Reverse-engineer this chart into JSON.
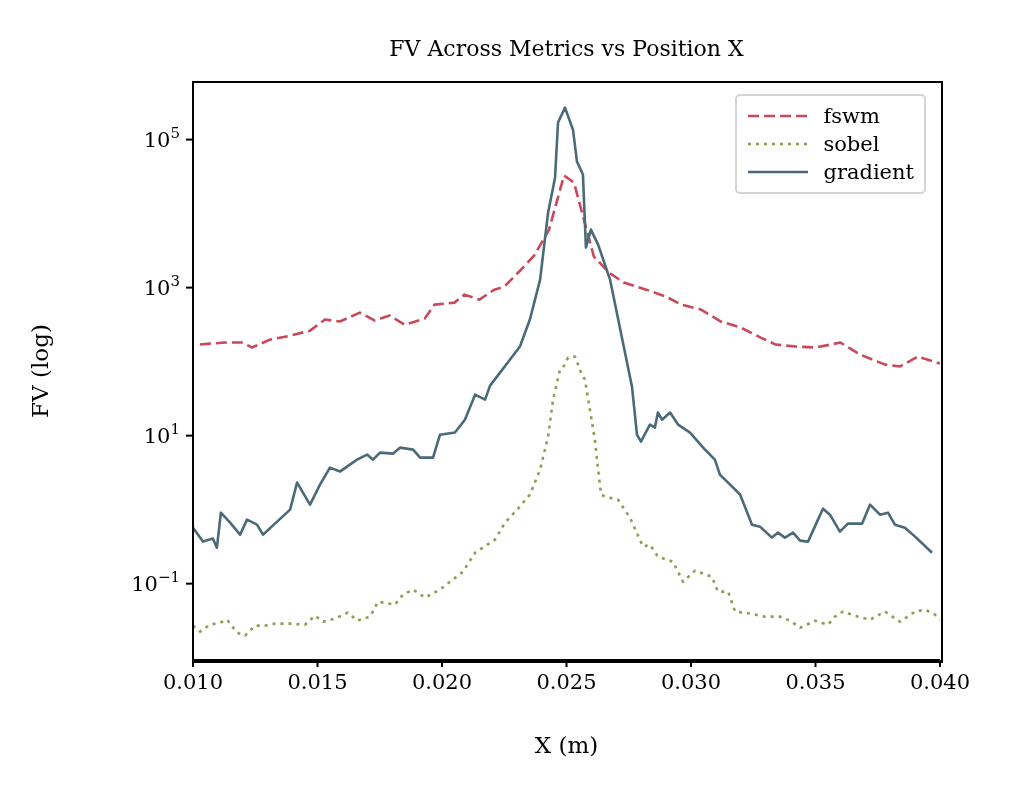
{
  "chart_data": {
    "type": "line",
    "title": "FV Across Metrics vs Position X",
    "xlabel": "X (m)",
    "ylabel": "FV (log)",
    "log": "y",
    "xlim": [
      0.01,
      0.04
    ],
    "xticks": [
      {
        "value": 0.01,
        "label": "0.010"
      },
      {
        "value": 0.015,
        "label": "0.015"
      },
      {
        "value": 0.02,
        "label": "0.020"
      },
      {
        "value": 0.025,
        "label": "0.025"
      },
      {
        "value": 0.03,
        "label": "0.030"
      },
      {
        "value": 0.035,
        "label": "0.035"
      },
      {
        "value": 0.04,
        "label": "0.040"
      }
    ],
    "ylim": [
      0.0093,
      600000
    ],
    "yticks": [
      {
        "value": 0.1,
        "label": "10$^{−1}$"
      },
      {
        "value": 10,
        "label": "10$^{1}$"
      },
      {
        "value": 1000,
        "label": "10$^{3}$"
      },
      {
        "value": 100000,
        "label": "10$^{5}$"
      }
    ],
    "legend": "top right",
    "marker": "none",
    "series": [
      {
        "name": "fswm",
        "color": "#c84a5a",
        "line_style": "dashed",
        "x": [
          0.01028,
          0.01068,
          0.01129,
          0.01197,
          0.01237,
          0.01309,
          0.0139,
          0.0147,
          0.0153,
          0.0159,
          0.0167,
          0.0173,
          0.0179,
          0.0185,
          0.0193,
          0.0197,
          0.0205,
          0.0209,
          0.0215,
          0.0221,
          0.0225,
          0.0231,
          0.0237,
          0.0243,
          0.0249,
          0.0253,
          0.0257,
          0.0261,
          0.0267,
          0.0273,
          0.0282,
          0.029,
          0.0296,
          0.0304,
          0.0312,
          0.032,
          0.0328,
          0.0334,
          0.0342,
          0.035,
          0.036,
          0.0368,
          0.0378,
          0.0384,
          0.0391,
          0.04
        ],
        "values": [
          170,
          175,
          181,
          181,
          155,
          198,
          224,
          262,
          370,
          348,
          459,
          358,
          419,
          316,
          381,
          589,
          627,
          804,
          688,
          939,
          1030,
          1650,
          2710,
          6080,
          32700,
          26300,
          8300,
          2620,
          1600,
          1170,
          939,
          755,
          589,
          505,
          348,
          288,
          211,
          170,
          160,
          155,
          181,
          124,
          91,
          86,
          117,
          94
        ]
      },
      {
        "name": "sobel",
        "color": "#8a9e56",
        "line_style": "dotted",
        "x": [
          0.01,
          0.01028,
          0.01068,
          0.01108,
          0.01137,
          0.01177,
          0.01209,
          0.01249,
          0.01289,
          0.01329,
          0.0139,
          0.0145,
          0.0149,
          0.01522,
          0.0157,
          0.01622,
          0.01659,
          0.01711,
          0.01743,
          0.01811,
          0.01843,
          0.01884,
          0.01932,
          0.01992,
          0.02032,
          0.02084,
          0.02133,
          0.02213,
          0.02253,
          0.02313,
          0.02353,
          0.02394,
          0.02426,
          0.02446,
          0.02474,
          0.02486,
          0.02506,
          0.02534,
          0.02562,
          0.02574,
          0.02594,
          0.02614,
          0.02627,
          0.02639,
          0.02655,
          0.02707,
          0.02755,
          0.02807,
          0.02835,
          0.02867,
          0.02928,
          0.02968,
          0.03016,
          0.03084,
          0.03108,
          0.03149,
          0.03177,
          0.03237,
          0.03297,
          0.03357,
          0.03398,
          0.03438,
          0.03498,
          0.0355,
          0.03578,
          0.0361,
          0.03671,
          0.03719,
          0.03779,
          0.03839,
          0.039,
          0.0394,
          0.0398,
          0.04
        ],
        "values": [
          0.0271,
          0.0225,
          0.0279,
          0.0297,
          0.0326,
          0.0218,
          0.0198,
          0.0271,
          0.0271,
          0.0288,
          0.0288,
          0.0279,
          0.037,
          0.0306,
          0.0337,
          0.0406,
          0.0316,
          0.0358,
          0.0571,
          0.052,
          0.071,
          0.083,
          0.0647,
          0.083,
          0.106,
          0.145,
          0.262,
          0.394,
          0.667,
          1.1,
          1.6,
          3.47,
          9.69,
          30.6,
          78,
          83,
          113,
          117,
          66.7,
          57.1,
          22.4,
          8.83,
          3.47,
          1.6,
          1.5,
          1.36,
          0.78,
          0.316,
          0.337,
          0.232,
          0.198,
          0.106,
          0.15,
          0.124,
          0.078,
          0.078,
          0.0419,
          0.0394,
          0.0358,
          0.0358,
          0.0316,
          0.0254,
          0.0316,
          0.0279,
          0.0358,
          0.0419,
          0.0358,
          0.0326,
          0.0419,
          0.0306,
          0.0419,
          0.0446,
          0.0381,
          0.0326
        ]
      },
      {
        "name": "gradient",
        "color": "#4a6a78",
        "line_style": "solid",
        "x": [
          0.01,
          0.0104,
          0.0108,
          0.01096,
          0.01112,
          0.01149,
          0.01189,
          0.01217,
          0.01257,
          0.01281,
          0.01329,
          0.0139,
          0.01418,
          0.0147,
          0.0151,
          0.0155,
          0.0159,
          0.0163,
          0.01659,
          0.01699,
          0.01723,
          0.01751,
          0.01803,
          0.01831,
          0.01884,
          0.01912,
          0.01964,
          0.01992,
          0.02052,
          0.02092,
          0.02133,
          0.02173,
          0.02193,
          0.02233,
          0.02313,
          0.02353,
          0.02394,
          0.02426,
          0.02454,
          0.02466,
          0.02494,
          0.02526,
          0.02542,
          0.02566,
          0.02578,
          0.02598,
          0.02627,
          0.02675,
          0.02763,
          0.02783,
          0.02799,
          0.02835,
          0.02855,
          0.02867,
          0.02884,
          0.02916,
          0.02948,
          0.02996,
          0.03056,
          0.03096,
          0.03116,
          0.03157,
          0.03197,
          0.03245,
          0.03277,
          0.03325,
          0.03349,
          0.03377,
          0.0341,
          0.03438,
          0.0347,
          0.0351,
          0.0353,
          0.03558,
          0.03598,
          0.0363,
          0.03687,
          0.03719,
          0.03759,
          0.03791,
          0.03819,
          0.03859,
          0.039,
          0.03968
        ],
        "values": [
          0.571,
          0.37,
          0.406,
          0.306,
          0.91,
          0.667,
          0.459,
          0.733,
          0.627,
          0.459,
          0.647,
          1,
          2.32,
          1.17,
          2.18,
          3.7,
          3.27,
          4.06,
          4.74,
          5.54,
          4.74,
          5.89,
          5.71,
          6.89,
          6.47,
          5.05,
          5.05,
          10.3,
          11,
          16.4,
          35.8,
          30.6,
          47.4,
          71,
          160,
          370,
          1280,
          10300,
          30600,
          170000,
          270000,
          136000,
          50500,
          33700,
          3480,
          6080,
          3810,
          1280,
          45.9,
          10.3,
          8.3,
          14.1,
          12.8,
          20.5,
          16.4,
          20.5,
          14.1,
          11,
          6.47,
          4.74,
          2.97,
          2.18,
          1.6,
          0.627,
          0.589,
          0.419,
          0.489,
          0.419,
          0.489,
          0.381,
          0.37,
          0.733,
          1.03,
          0.855,
          0.504,
          0.647,
          0.647,
          1.17,
          0.855,
          0.91,
          0.627,
          0.571,
          0.432,
          0.262
        ]
      }
    ]
  }
}
